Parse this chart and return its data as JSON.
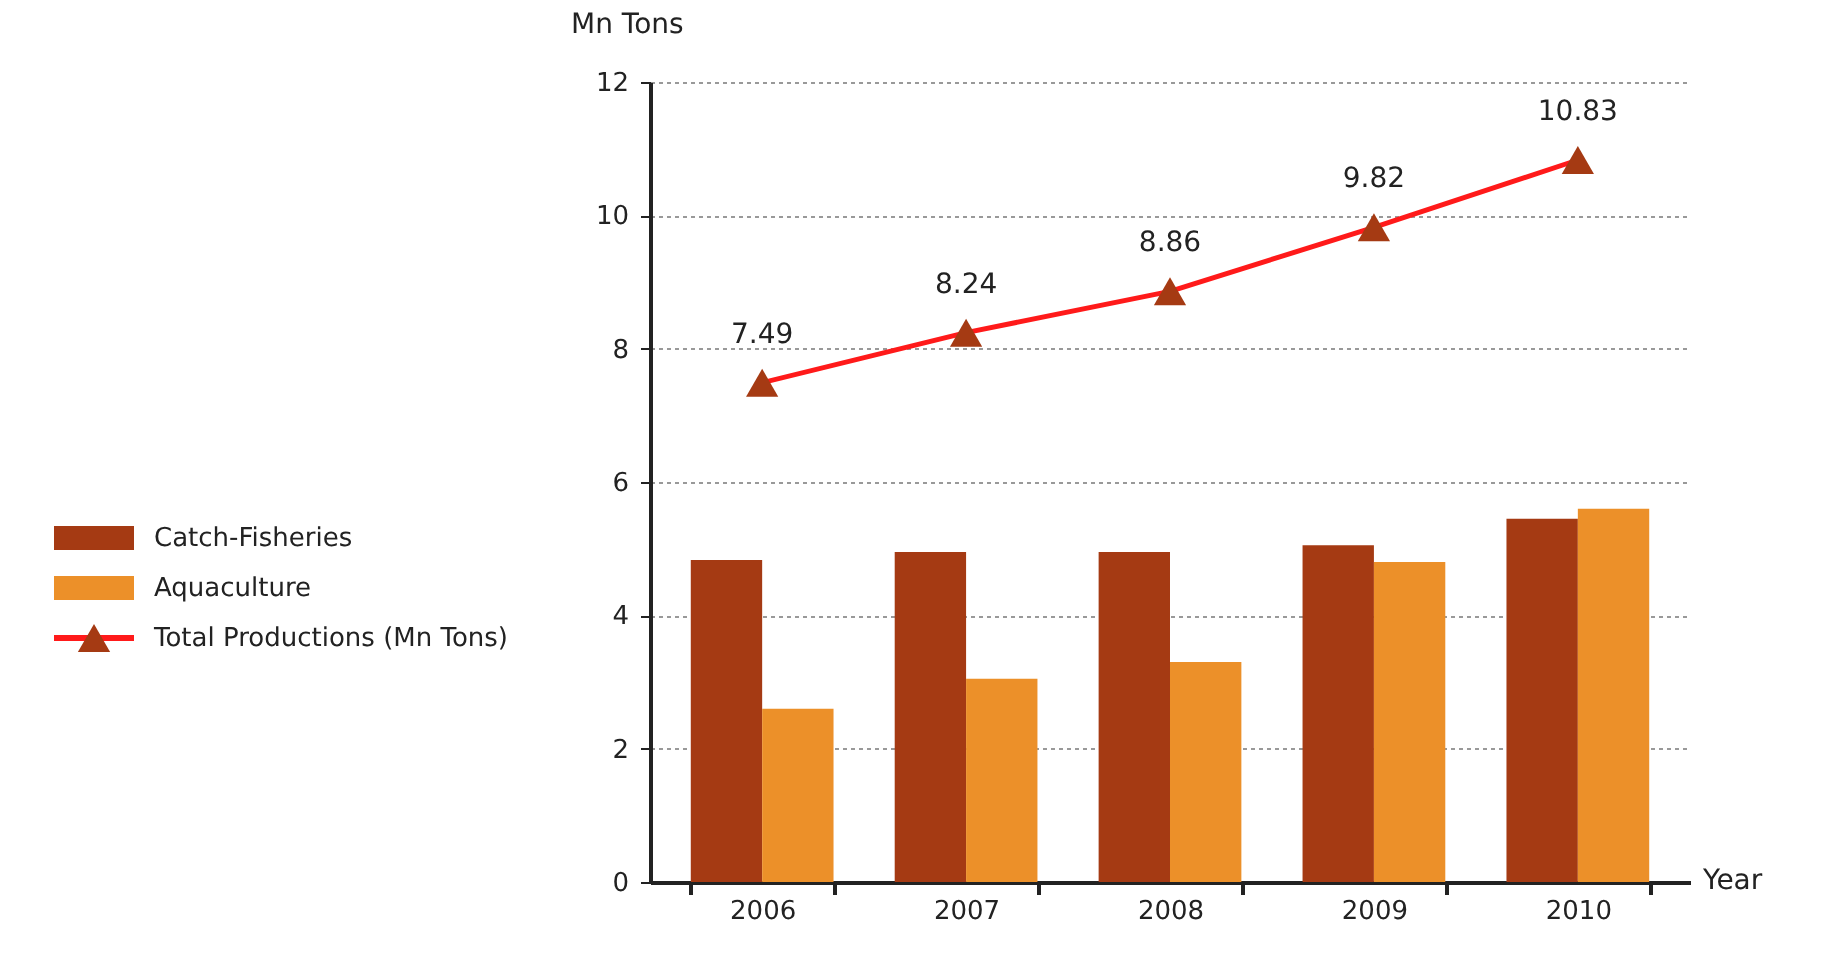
{
  "chart_data": {
    "type": "bar",
    "xlabel": "Year",
    "ylabel": "Mn Tons",
    "categories": [
      "2006",
      "2007",
      "2008",
      "2009",
      "2010"
    ],
    "series": [
      {
        "name": "Catch-Fisheries",
        "color": "#a53a13",
        "values": [
          4.83,
          4.95,
          4.95,
          5.05,
          5.45
        ]
      },
      {
        "name": "Aquaculture",
        "color": "#ec9029",
        "values": [
          2.6,
          3.05,
          3.3,
          4.8,
          5.6
        ]
      },
      {
        "name": "Total Productions (Mn Tons)",
        "type": "line",
        "color": "#ff1a1a",
        "colors": [
          "#a53a13",
          "#a53a13",
          "#a53a13",
          "#a53a13",
          "#a53a13"
        ],
        "marker": "triangle",
        "line_style": "solid",
        "values": [
          7.49,
          8.24,
          8.86,
          9.82,
          10.83
        ],
        "value_labels": [
          "7.49",
          "8.24",
          "8.86",
          "9.82",
          "10.83"
        ]
      }
    ],
    "ylim": [
      0,
      12
    ],
    "yticks": [
      0,
      2,
      4,
      6,
      8,
      10,
      12
    ],
    "grid": "y",
    "legend": "left"
  }
}
